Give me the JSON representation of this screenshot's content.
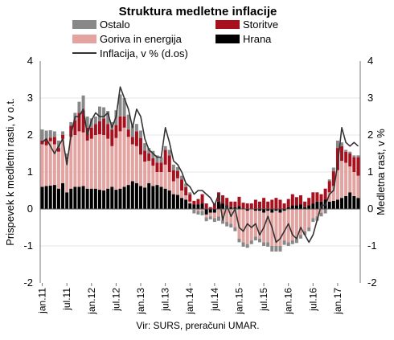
{
  "chart_data": {
    "type": "bar",
    "stacked": true,
    "title": "Struktura medletne inflacije",
    "ylabel_left": "Prispevek k medletni rasti, v o.t.",
    "ylabel_right": "Medletna rast, v %",
    "ylim": [
      -2,
      4
    ],
    "yticks": [
      -2,
      -1,
      0,
      1,
      2,
      3,
      4
    ],
    "x_tick_labels": [
      "jan.11",
      "jul.11",
      "jan.12",
      "jul.12",
      "jan.13",
      "jul.13",
      "jan.14",
      "jul.14",
      "jan.15",
      "jul.15",
      "jan.16",
      "jul.16",
      "jan.17"
    ],
    "source": "Vir: SURS, preračuni UMAR.",
    "legend_position": "top",
    "x": [
      "jan.11",
      "feb.11",
      "mar.11",
      "apr.11",
      "maj.11",
      "jun.11",
      "jul.11",
      "avg.11",
      "sep.11",
      "okt.11",
      "nov.11",
      "dec.11",
      "jan.12",
      "feb.12",
      "mar.12",
      "apr.12",
      "maj.12",
      "jun.12",
      "jul.12",
      "avg.12",
      "sep.12",
      "okt.12",
      "nov.12",
      "dec.12",
      "jan.13",
      "feb.13",
      "mar.13",
      "apr.13",
      "maj.13",
      "jun.13",
      "jul.13",
      "avg.13",
      "sep.13",
      "okt.13",
      "nov.13",
      "dec.13",
      "jan.14",
      "feb.14",
      "mar.14",
      "apr.14",
      "maj.14",
      "jun.14",
      "jul.14",
      "avg.14",
      "sep.14",
      "okt.14",
      "nov.14",
      "dec.14",
      "jan.15",
      "feb.15",
      "mar.15",
      "apr.15",
      "maj.15",
      "jun.15",
      "jul.15",
      "avg.15",
      "sep.15",
      "okt.15",
      "nov.15",
      "dec.15",
      "jan.16",
      "feb.16",
      "mar.16",
      "apr.16",
      "maj.16",
      "jun.16",
      "jul.16",
      "avg.16",
      "sep.16",
      "okt.16",
      "nov.16",
      "dec.16",
      "jan.17",
      "feb.17",
      "mar.17",
      "apr.17",
      "maj.17",
      "jun.17"
    ],
    "series": [
      {
        "name": "Hrana",
        "color": "#000000",
        "values": [
          0.6,
          0.62,
          0.63,
          0.65,
          0.55,
          0.7,
          0.45,
          0.55,
          0.6,
          0.6,
          0.62,
          0.55,
          0.55,
          0.55,
          0.52,
          0.5,
          0.55,
          0.6,
          0.52,
          0.55,
          0.6,
          0.65,
          0.75,
          0.7,
          0.62,
          0.58,
          0.7,
          0.62,
          0.65,
          0.6,
          0.55,
          0.5,
          0.4,
          0.38,
          0.3,
          0.25,
          0.15,
          0.12,
          0.12,
          0.15,
          -0.15,
          -0.1,
          -0.1,
          0.2,
          0.15,
          0.1,
          0.05,
          0.05,
          0.08,
          0.02,
          -0.05,
          0.0,
          -0.05,
          -0.05,
          -0.1,
          -0.05,
          -0.1,
          -0.05,
          -0.1,
          -0.05,
          0.05,
          0.1,
          0.1,
          0.12,
          0.05,
          0.1,
          0.15,
          0.2,
          0.2,
          0.25,
          0.2,
          0.22,
          0.25,
          0.3,
          0.35,
          0.45,
          0.35,
          0.3
        ]
      },
      {
        "name": "Goriva in energija",
        "color": "#e3a3a0",
        "values": [
          1.15,
          1.1,
          1.2,
          1.1,
          1.0,
          1.2,
          0.9,
          1.4,
          1.4,
          1.5,
          1.45,
          1.3,
          1.35,
          1.45,
          1.5,
          1.5,
          1.35,
          1.1,
          1.4,
          1.55,
          1.6,
          1.3,
          1.0,
          1.0,
          0.85,
          0.7,
          0.6,
          0.55,
          0.35,
          0.4,
          0.65,
          0.5,
          0.35,
          0.45,
          0.2,
          0.12,
          0.05,
          -0.02,
          -0.05,
          -0.05,
          -0.08,
          -0.1,
          -0.15,
          -0.2,
          -0.3,
          -0.35,
          -0.4,
          -0.5,
          -0.8,
          -0.9,
          -0.9,
          -0.85,
          -0.7,
          -0.75,
          -0.8,
          -0.85,
          -0.9,
          -0.95,
          -0.9,
          -0.8,
          -0.9,
          -0.85,
          -0.8,
          -0.7,
          -0.6,
          -0.5,
          -0.25,
          -0.2,
          -0.1,
          0.0,
          0.25,
          0.4,
          0.8,
          1.0,
          0.9,
          0.7,
          0.65,
          0.6
        ]
      },
      {
        "name": "Storitve",
        "color": "#a8101e",
        "values": [
          0.1,
          0.15,
          0.1,
          0.2,
          0.1,
          0.1,
          0.05,
          0.3,
          0.4,
          0.5,
          0.6,
          0.35,
          0.3,
          0.3,
          0.35,
          0.45,
          0.4,
          0.45,
          0.35,
          0.4,
          0.3,
          0.2,
          0.2,
          0.4,
          0.45,
          0.3,
          0.2,
          0.2,
          0.25,
          0.25,
          0.4,
          0.45,
          0.3,
          0.2,
          0.3,
          0.22,
          0.2,
          0.1,
          0.15,
          0.25,
          0.15,
          0.05,
          0.15,
          0.25,
          0.22,
          0.2,
          0.15,
          0.15,
          0.25,
          0.15,
          0.15,
          0.15,
          0.25,
          0.2,
          0.3,
          0.2,
          0.25,
          0.3,
          0.25,
          0.15,
          0.22,
          0.3,
          0.22,
          0.25,
          0.15,
          0.2,
          0.3,
          0.25,
          0.2,
          0.3,
          0.3,
          0.4,
          0.6,
          0.4,
          0.3,
          0.35,
          0.4,
          0.5
        ]
      },
      {
        "name": "Ostalo",
        "color": "#888888",
        "values": [
          0.3,
          0.25,
          0.2,
          0.15,
          0.2,
          0.1,
          0.1,
          0.1,
          0.2,
          0.3,
          0.4,
          0.3,
          0.25,
          0.2,
          0.4,
          0.3,
          0.35,
          0.2,
          0.4,
          0.6,
          0.5,
          0.4,
          0.3,
          0.2,
          0.2,
          0.2,
          0.15,
          0.2,
          0.2,
          0.15,
          0.1,
          0.15,
          0.15,
          0.1,
          0.1,
          0.1,
          0.05,
          -0.1,
          -0.1,
          -0.12,
          -0.1,
          -0.08,
          -0.1,
          -0.12,
          -0.1,
          -0.12,
          -0.1,
          -0.1,
          -0.1,
          -0.12,
          -0.1,
          -0.1,
          -0.1,
          -0.1,
          -0.1,
          -0.12,
          -0.15,
          -0.15,
          -0.15,
          -0.12,
          -0.1,
          -0.1,
          -0.12,
          -0.1,
          -0.1,
          -0.1,
          -0.1,
          -0.12,
          -0.1,
          -0.12,
          0.05,
          0.1,
          0.2,
          0.1,
          0.05,
          0.05,
          0.05,
          0.05
        ]
      }
    ],
    "line": {
      "name": "Inflacija, v % (d.os)",
      "color": "#333333",
      "values": [
        1.8,
        1.9,
        1.7,
        1.5,
        1.7,
        1.9,
        1.2,
        2.0,
        2.5,
        2.5,
        2.7,
        2.0,
        2.4,
        2.6,
        2.5,
        2.5,
        2.6,
        2.2,
        2.5,
        3.3,
        3.0,
        2.7,
        2.2,
        2.7,
        2.5,
        1.9,
        1.6,
        1.5,
        1.4,
        1.4,
        2.2,
        1.8,
        1.3,
        1.2,
        1.0,
        0.7,
        0.6,
        0.4,
        0.5,
        0.5,
        0.4,
        0.3,
        0.1,
        0.4,
        -0.3,
        0.1,
        -0.2,
        0.0,
        -0.5,
        -0.6,
        -0.4,
        -0.5,
        -0.4,
        -0.7,
        -0.5,
        -0.2,
        -0.5,
        -0.9,
        -0.8,
        -0.6,
        -0.4,
        -0.7,
        -0.8,
        -0.5,
        -0.7,
        -0.9,
        -0.7,
        -0.3,
        0.1,
        0.1,
        0.4,
        0.5,
        1.2,
        2.2,
        1.8,
        1.7,
        1.8,
        1.7
      ]
    }
  }
}
